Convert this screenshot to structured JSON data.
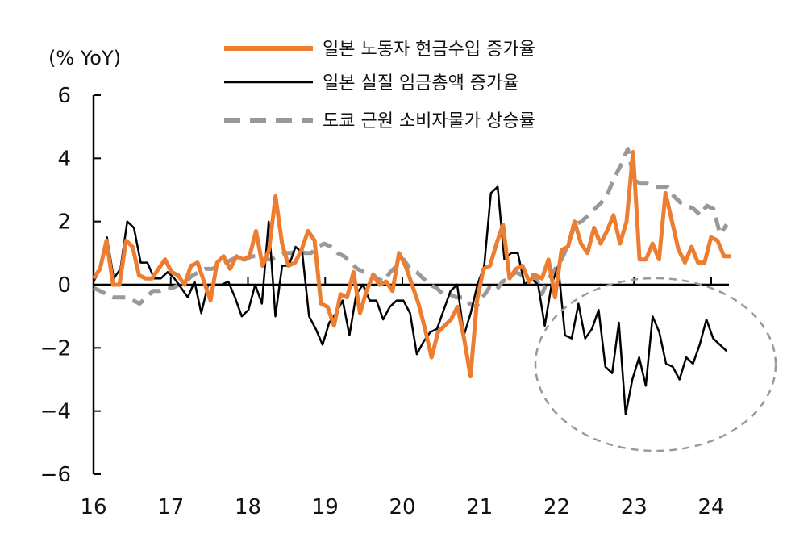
{
  "chart_data": {
    "type": "line",
    "unit_label": "(% YoY)",
    "x_tick_labels": [
      "16",
      "17",
      "18",
      "19",
      "20",
      "21",
      "22",
      "23",
      "24"
    ],
    "y_tick_labels": [
      "6",
      "4",
      "2",
      "0",
      "-2",
      "-4",
      "-6"
    ],
    "ylim": [
      -6,
      6
    ],
    "xlim": [
      2016.0,
      2024.3
    ],
    "legend_position": "top-right",
    "grid": false,
    "annotation": "dashed ellipse highlighting negative real wage growth in 2022-2024",
    "series": [
      {
        "name": "일본 노동자 현금수입 증가율",
        "color": "#ED7D31",
        "style": "solid-thick",
        "x_start": 2016.0,
        "x_step": 0.0833,
        "values": [
          0.2,
          0.5,
          1.4,
          0.0,
          0.0,
          1.4,
          1.2,
          0.3,
          0.2,
          0.2,
          0.5,
          0.8,
          0.4,
          0.3,
          0.0,
          0.6,
          0.7,
          0.1,
          -0.5,
          0.7,
          0.9,
          0.5,
          0.9,
          0.8,
          0.9,
          1.7,
          0.6,
          1.1,
          2.8,
          1.3,
          0.6,
          0.7,
          1.1,
          1.7,
          1.4,
          -0.6,
          -0.7,
          -1.3,
          -0.3,
          -0.4,
          0.4,
          -0.9,
          -0.2,
          0.3,
          0.0,
          0.1,
          -0.2,
          1.0,
          0.6,
          0.0,
          -0.6,
          -1.4,
          -2.3,
          -1.5,
          -1.3,
          -1.1,
          -0.7,
          -1.7,
          -2.9,
          -0.5,
          0.5,
          0.6,
          1.3,
          1.9,
          0.2,
          0.5,
          0.6,
          0.1,
          0.3,
          0.2,
          0.8,
          -0.4,
          1.1,
          1.2,
          2.0,
          1.3,
          1.0,
          1.8,
          1.3,
          1.7,
          2.2,
          1.3,
          2.0,
          4.2,
          0.8,
          0.8,
          1.3,
          0.8,
          2.9,
          2.0,
          1.1,
          0.7,
          1.2,
          0.7,
          0.7,
          1.5,
          1.4,
          0.9,
          0.9
        ]
      },
      {
        "name": "일본 실질 임금총액 증가율",
        "color": "#000000",
        "style": "solid-thin",
        "x_start": 2016.0,
        "x_step": 0.0833,
        "values": [
          0.1,
          0.5,
          1.5,
          0.2,
          0.5,
          2.0,
          1.8,
          0.7,
          0.7,
          0.2,
          0.2,
          0.4,
          0.2,
          -0.1,
          -0.4,
          0.1,
          -0.9,
          0.0,
          0.0,
          0.0,
          0.1,
          -0.4,
          -1.0,
          -0.8,
          0.0,
          -0.6,
          2.0,
          -1.0,
          0.6,
          0.6,
          1.2,
          1.0,
          -1.0,
          -1.4,
          -1.9,
          -1.2,
          -0.9,
          -0.5,
          -1.6,
          -0.3,
          0.0,
          -0.5,
          -0.5,
          -1.1,
          -0.7,
          -0.5,
          -0.5,
          -0.9,
          -2.2,
          -1.8,
          -1.5,
          -1.4,
          -0.8,
          -0.2,
          0.0,
          -1.6,
          -0.9,
          0.0,
          0.6,
          2.9,
          3.1,
          0.8,
          1.0,
          1.0,
          0.0,
          0.2,
          0.0,
          -1.3,
          0.0,
          0.6,
          -1.6,
          -1.7,
          -0.6,
          -1.7,
          -1.4,
          -0.8,
          -2.6,
          -2.8,
          -1.2,
          -4.1,
          -3.0,
          -2.3,
          -3.2,
          -1.0,
          -1.5,
          -2.5,
          -2.6,
          -3.0,
          -2.3,
          -2.5,
          -1.9,
          -1.1,
          -1.7,
          -1.9,
          -2.1
        ],
        "note": "x_start for this series adjusted in script"
      },
      {
        "name": "도쿄 근원 소비자물가 상승률",
        "color": "#999999",
        "style": "dashed",
        "x_start": 2016.0,
        "x_step": 0.0833,
        "values": [
          -0.1,
          -0.2,
          -0.3,
          -0.4,
          -0.4,
          -0.4,
          -0.5,
          -0.6,
          -0.4,
          -0.2,
          -0.2,
          -0.1,
          -0.1,
          0.0,
          0.1,
          0.3,
          0.4,
          0.5,
          0.5,
          0.6,
          0.7,
          0.8,
          0.9,
          0.8,
          0.9,
          0.9,
          0.8,
          0.8,
          0.9,
          1.0,
          1.0,
          1.1,
          1.0,
          1.0,
          1.2,
          1.3,
          1.2,
          1.0,
          0.9,
          0.7,
          0.5,
          0.4,
          0.4,
          0.2,
          0.1,
          0.4,
          0.6,
          0.8,
          0.5,
          0.4,
          0.2,
          0.0,
          -0.1,
          -0.3,
          -0.3,
          -0.4,
          -0.4,
          -0.6,
          -0.7,
          -0.4,
          -0.1,
          -0.2,
          0.1,
          0.2,
          0.4,
          0.3,
          0.3,
          0.3,
          -0.3,
          0.2,
          0.5,
          0.8,
          1.3,
          1.9,
          2.0,
          2.2,
          2.4,
          2.6,
          2.9,
          3.4,
          3.8,
          4.3,
          3.3,
          3.2,
          3.2,
          3.1,
          3.1,
          3.1,
          2.8,
          2.6,
          2.5,
          2.4,
          2.2,
          2.5,
          2.4,
          1.6,
          1.9
        ]
      }
    ]
  }
}
